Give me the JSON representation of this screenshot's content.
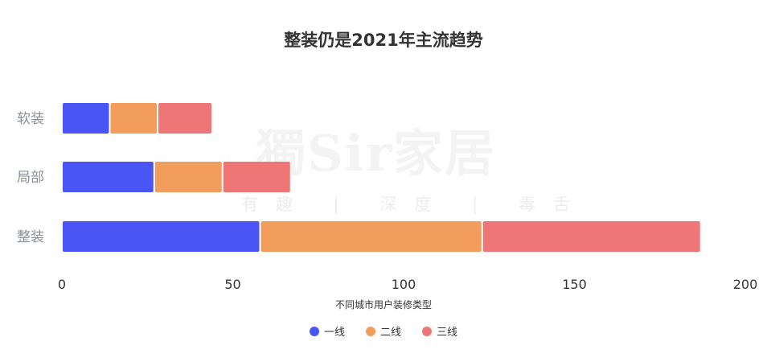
{
  "chart_data": {
    "type": "bar",
    "orientation": "horizontal",
    "stacked": true,
    "title": "整装仍是2021年主流趋势",
    "categories": [
      "软装",
      "局部",
      "整装"
    ],
    "series": [
      {
        "name": "一线",
        "color": "#4a55f6",
        "values": [
          14,
          27,
          58
        ]
      },
      {
        "name": "二线",
        "color": "#f29d5c",
        "values": [
          14,
          20,
          65
        ]
      },
      {
        "name": "三线",
        "color": "#ef7676",
        "values": [
          16,
          20,
          64
        ]
      }
    ],
    "xlabel": "不同城市用户装修类型",
    "ylabel": "",
    "xlim": [
      0,
      200
    ],
    "xticks": [
      0,
      50,
      100,
      150,
      200
    ],
    "grid": false,
    "legend_position": "bottom-center"
  },
  "watermark": {
    "main": "獨Sir家居",
    "sub": "有趣 | 深度 | 毒舌"
  }
}
